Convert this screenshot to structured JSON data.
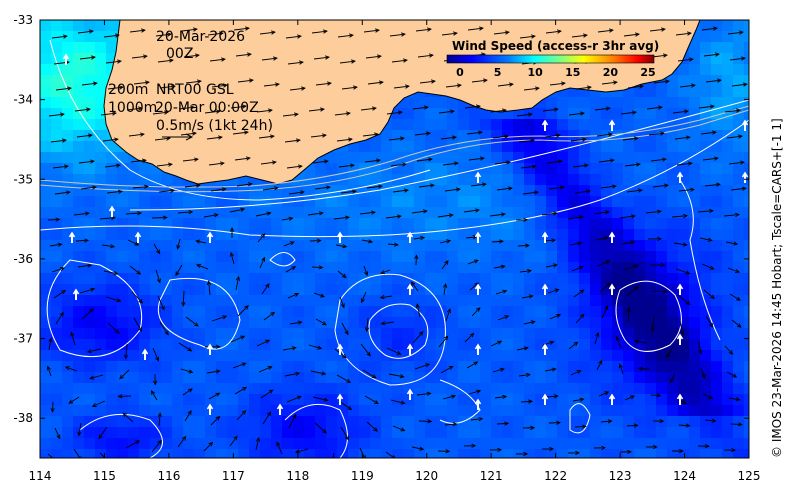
{
  "annotations": {
    "date": "20-Mar-2026",
    "time": "00Z",
    "iso_200": "200m",
    "iso_1000": "1000m",
    "source": "NRT00 GSL",
    "timestamp": "20-Mar 00:00Z",
    "vector_scale": "0.5m/s (1kt 24h)"
  },
  "colorbar": {
    "title": "Wind Speed (access-r 3hr avg)",
    "ticks": [
      "0",
      "5",
      "10",
      "15",
      "20",
      "25"
    ],
    "range": [
      0,
      25
    ],
    "colors": [
      "#00008f",
      "#0000ff",
      "#0080ff",
      "#00ffff",
      "#80ff80",
      "#ffff00",
      "#ff8000",
      "#ff0000",
      "#800000"
    ]
  },
  "credit": "© IMOS 23-Mar-2026 14:45 Hobart; Tscale=CARS+[-1 1]",
  "axes": {
    "x_ticks": [
      "114",
      "115",
      "116",
      "117",
      "118",
      "119",
      "120",
      "121",
      "122",
      "123",
      "124",
      "125"
    ],
    "y_ticks": [
      "-33",
      "-34",
      "-35",
      "-36",
      "-37",
      "-38"
    ],
    "x_range": [
      114,
      125
    ],
    "y_range": [
      -38.5,
      -33
    ]
  },
  "colors": {
    "land": "#fdcd9c",
    "coast": "#000000",
    "contour": "#ffffff",
    "isobath": "#c8c8c8"
  }
}
